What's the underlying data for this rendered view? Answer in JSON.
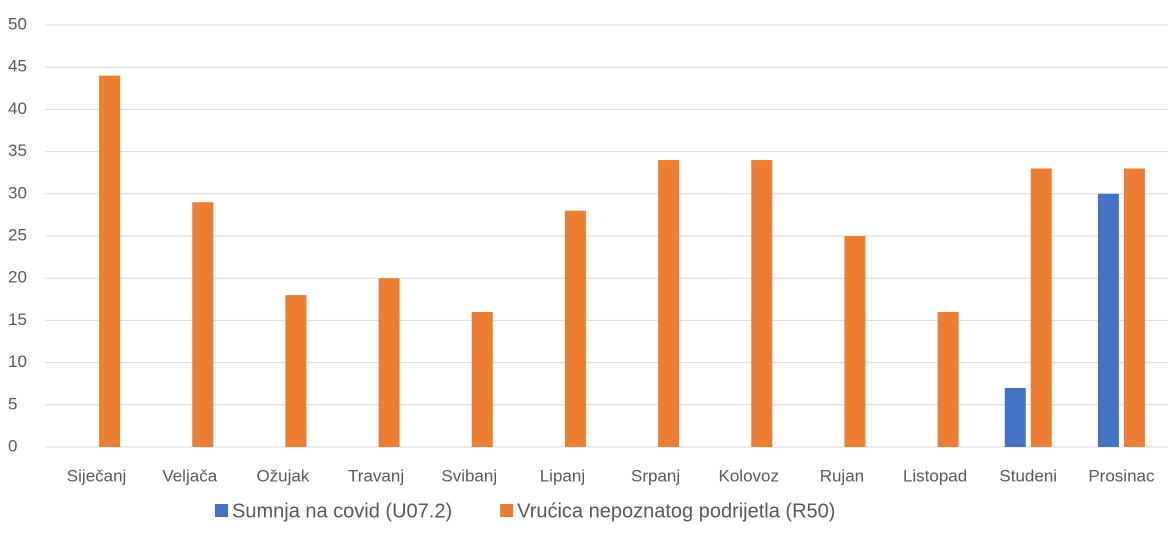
{
  "chart_data": {
    "type": "bar",
    "categories": [
      "Siječanj",
      "Veljača",
      "Ožujak",
      "Travanj",
      "Svibanj",
      "Lipanj",
      "Srpanj",
      "Kolovoz",
      "Rujan",
      "Listopad",
      "Studeni",
      "Prosinac"
    ],
    "series": [
      {
        "name": "Sumnja na covid (U07.2)",
        "color": "#4472c4",
        "values": [
          0,
          0,
          0,
          0,
          0,
          0,
          0,
          0,
          0,
          0,
          7,
          30
        ]
      },
      {
        "name": "Vrućica nepoznatog podrijetla (R50)",
        "color": "#ed7d31",
        "values": [
          44,
          29,
          18,
          20,
          16,
          28,
          34,
          34,
          25,
          16,
          33,
          33
        ]
      }
    ],
    "ylim": [
      0,
      50
    ],
    "yticks": [
      0,
      5,
      10,
      15,
      20,
      25,
      30,
      35,
      40,
      45,
      50
    ],
    "grid": true,
    "legend": "bottom"
  }
}
